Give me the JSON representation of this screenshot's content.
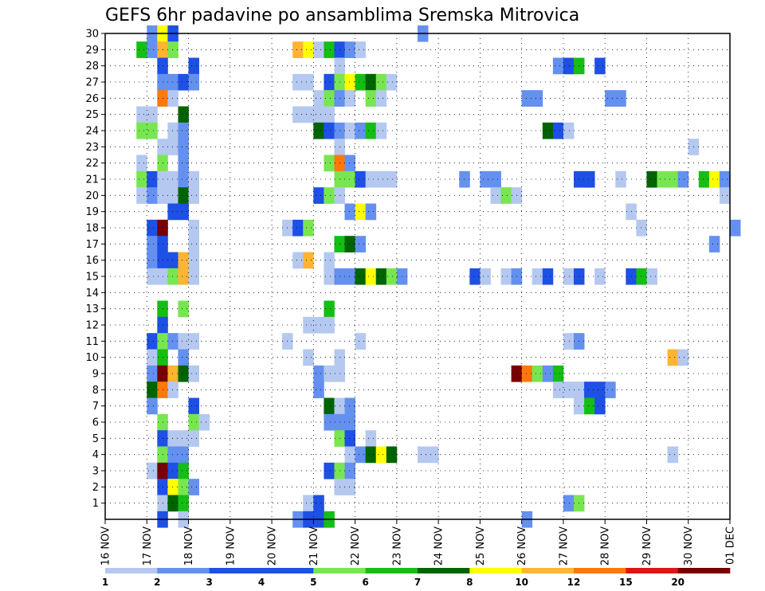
{
  "chart_data": {
    "type": "heatmap",
    "title": "GEFS 6hr padavine po ansamblima Sremska Mitrovica",
    "x_tick_labels": [
      "16 NOV",
      "17 NOV",
      "18 NOV",
      "19 NOV",
      "20 NOV",
      "21 NOV",
      "22 NOV",
      "23 NOV",
      "24 NOV",
      "25 NOV",
      "26 NOV",
      "27 NOV",
      "28 NOV",
      "29 NOV",
      "30 NOV",
      "01 DEC"
    ],
    "x_range_days": [
      0,
      15
    ],
    "y_range": [
      0,
      30
    ],
    "y_ticks": [
      1,
      2,
      3,
      4,
      5,
      6,
      7,
      8,
      9,
      10,
      11,
      12,
      13,
      14,
      15,
      16,
      17,
      18,
      19,
      20,
      21,
      22,
      23,
      24,
      25,
      26,
      27,
      28,
      29,
      30
    ],
    "grid": true,
    "legend_placement": "bottom",
    "legend": {
      "labels": [
        "1",
        "2",
        "3",
        "4",
        "5",
        "6",
        "7",
        "8",
        "10",
        "12",
        "15",
        "20"
      ],
      "colors": [
        "#b4c8f0",
        "#6490f0",
        "#1e50e6",
        "#1e50e6",
        "#78e650",
        "#14be14",
        "#006400",
        "#ffff00",
        "#ffb432",
        "#ff780a",
        "#e11414",
        "#780000"
      ]
    },
    "class_colors": {
      "1": "#b4c8f0",
      "2": "#6490f0",
      "3": "#1e50e6",
      "4": "#78e650",
      "5": "#14be14",
      "6": "#006400",
      "7": "#ffff00",
      "8": "#ffb432",
      "9": "#ff780a",
      "10": "#e11414",
      "11": "#780000"
    },
    "cells": [
      [
        0,
        30,
        4,
        2
      ],
      [
        0,
        30,
        5,
        7
      ],
      [
        0,
        30,
        6,
        3
      ],
      [
        0,
        30,
        30,
        2
      ],
      [
        0,
        29,
        3,
        5
      ],
      [
        0,
        29,
        4,
        2
      ],
      [
        0,
        29,
        5,
        8
      ],
      [
        0,
        29,
        6,
        4
      ],
      [
        0,
        29,
        18,
        8
      ],
      [
        0,
        29,
        19,
        7
      ],
      [
        0,
        29,
        20,
        1
      ],
      [
        0,
        29,
        21,
        5
      ],
      [
        0,
        29,
        22,
        3
      ],
      [
        0,
        29,
        23,
        2
      ],
      [
        0,
        29,
        24,
        1
      ],
      [
        0,
        28,
        5,
        3
      ],
      [
        0,
        28,
        8,
        3
      ],
      [
        0,
        28,
        22,
        1
      ],
      [
        0,
        28,
        43,
        2
      ],
      [
        0,
        28,
        44,
        3
      ],
      [
        0,
        28,
        45,
        5
      ],
      [
        0,
        28,
        47,
        3
      ],
      [
        0,
        27,
        5,
        2
      ],
      [
        0,
        27,
        6,
        2
      ],
      [
        0,
        27,
        7,
        3
      ],
      [
        0,
        27,
        8,
        2
      ],
      [
        0,
        27,
        18,
        1
      ],
      [
        0,
        27,
        19,
        1
      ],
      [
        0,
        27,
        21,
        3
      ],
      [
        0,
        27,
        22,
        4
      ],
      [
        0,
        27,
        23,
        7
      ],
      [
        0,
        27,
        24,
        5
      ],
      [
        0,
        27,
        25,
        6
      ],
      [
        0,
        27,
        26,
        4
      ],
      [
        0,
        27,
        27,
        1
      ],
      [
        0,
        26,
        5,
        9
      ],
      [
        0,
        26,
        6,
        1
      ],
      [
        0,
        26,
        20,
        1
      ],
      [
        0,
        26,
        21,
        4
      ],
      [
        0,
        26,
        22,
        2
      ],
      [
        0,
        26,
        23,
        1
      ],
      [
        0,
        26,
        25,
        4
      ],
      [
        0,
        26,
        26,
        1
      ],
      [
        0,
        26,
        40,
        2
      ],
      [
        0,
        26,
        41,
        2
      ],
      [
        0,
        26,
        48,
        2
      ],
      [
        0,
        26,
        49,
        2
      ],
      [
        0,
        25,
        3,
        1
      ],
      [
        0,
        25,
        4,
        1
      ],
      [
        0,
        25,
        7,
        6
      ],
      [
        0,
        25,
        18,
        1
      ],
      [
        0,
        25,
        19,
        1
      ],
      [
        0,
        25,
        20,
        1
      ],
      [
        0,
        25,
        21,
        1
      ],
      [
        0,
        24,
        3,
        4
      ],
      [
        0,
        24,
        4,
        4
      ],
      [
        0,
        24,
        6,
        1
      ],
      [
        0,
        24,
        7,
        2
      ],
      [
        0,
        24,
        20,
        6
      ],
      [
        0,
        24,
        21,
        3
      ],
      [
        0,
        24,
        22,
        2
      ],
      [
        0,
        24,
        23,
        1
      ],
      [
        0,
        24,
        24,
        2
      ],
      [
        0,
        24,
        25,
        5
      ],
      [
        0,
        24,
        26,
        1
      ],
      [
        0,
        24,
        42,
        6
      ],
      [
        0,
        24,
        43,
        3
      ],
      [
        0,
        24,
        44,
        1
      ],
      [
        0,
        23,
        5,
        1
      ],
      [
        0,
        23,
        6,
        1
      ],
      [
        0,
        23,
        7,
        2
      ],
      [
        0,
        23,
        22,
        1
      ],
      [
        0,
        23,
        56,
        1
      ],
      [
        0,
        22,
        3,
        1
      ],
      [
        0,
        22,
        5,
        4
      ],
      [
        0,
        22,
        7,
        2
      ],
      [
        0,
        22,
        21,
        4
      ],
      [
        0,
        22,
        22,
        9
      ],
      [
        0,
        22,
        23,
        2
      ],
      [
        0,
        21,
        3,
        4
      ],
      [
        0,
        21,
        4,
        3
      ],
      [
        0,
        21,
        5,
        1
      ],
      [
        0,
        21,
        6,
        1
      ],
      [
        0,
        21,
        7,
        2
      ],
      [
        0,
        21,
        8,
        1
      ],
      [
        0,
        21,
        22,
        4
      ],
      [
        0,
        21,
        23,
        4
      ],
      [
        0,
        21,
        24,
        3
      ],
      [
        0,
        21,
        25,
        1
      ],
      [
        0,
        21,
        26,
        1
      ],
      [
        0,
        21,
        27,
        1
      ],
      [
        0,
        21,
        34,
        2
      ],
      [
        0,
        21,
        36,
        2
      ],
      [
        0,
        21,
        37,
        2
      ],
      [
        0,
        21,
        45,
        3
      ],
      [
        0,
        21,
        46,
        3
      ],
      [
        0,
        21,
        49,
        1
      ],
      [
        0,
        21,
        52,
        6
      ],
      [
        0,
        21,
        53,
        4
      ],
      [
        0,
        21,
        54,
        4
      ],
      [
        0,
        21,
        55,
        2
      ],
      [
        0,
        21,
        57,
        5
      ],
      [
        0,
        21,
        58,
        7
      ],
      [
        0,
        21,
        59,
        2
      ],
      [
        0,
        20,
        3,
        1
      ],
      [
        0,
        20,
        4,
        2
      ],
      [
        0,
        20,
        5,
        1
      ],
      [
        0,
        20,
        6,
        1
      ],
      [
        0,
        20,
        7,
        6
      ],
      [
        0,
        20,
        8,
        1
      ],
      [
        0,
        20,
        20,
        3
      ],
      [
        0,
        20,
        21,
        4
      ],
      [
        0,
        20,
        22,
        1
      ],
      [
        0,
        20,
        37,
        1
      ],
      [
        0,
        20,
        38,
        4
      ],
      [
        0,
        20,
        39,
        1
      ],
      [
        0,
        20,
        59,
        1
      ],
      [
        0,
        19,
        6,
        3
      ],
      [
        0,
        19,
        7,
        3
      ],
      [
        0,
        19,
        23,
        2
      ],
      [
        0,
        19,
        24,
        7
      ],
      [
        0,
        19,
        25,
        2
      ],
      [
        0,
        19,
        50,
        1
      ],
      [
        0,
        18,
        4,
        3
      ],
      [
        0,
        18,
        5,
        11
      ],
      [
        0,
        18,
        8,
        1
      ],
      [
        0,
        18,
        17,
        1
      ],
      [
        0,
        18,
        18,
        3
      ],
      [
        0,
        18,
        19,
        4
      ],
      [
        0,
        18,
        51,
        1
      ],
      [
        0,
        18,
        60,
        2
      ],
      [
        0,
        17,
        4,
        2
      ],
      [
        0,
        17,
        5,
        3
      ],
      [
        0,
        17,
        8,
        1
      ],
      [
        0,
        17,
        22,
        5
      ],
      [
        0,
        17,
        23,
        6
      ],
      [
        0,
        17,
        24,
        2
      ],
      [
        0,
        17,
        58,
        2
      ],
      [
        0,
        16,
        4,
        2
      ],
      [
        0,
        16,
        5,
        3
      ],
      [
        0,
        16,
        6,
        3
      ],
      [
        0,
        16,
        7,
        8
      ],
      [
        0,
        16,
        8,
        1
      ],
      [
        0,
        16,
        18,
        1
      ],
      [
        0,
        16,
        19,
        8
      ],
      [
        0,
        16,
        21,
        1
      ],
      [
        0,
        15,
        4,
        1
      ],
      [
        0,
        15,
        5,
        1
      ],
      [
        0,
        15,
        6,
        4
      ],
      [
        0,
        15,
        7,
        8
      ],
      [
        0,
        15,
        8,
        1
      ],
      [
        0,
        15,
        21,
        1
      ],
      [
        0,
        15,
        22,
        2
      ],
      [
        0,
        15,
        23,
        2
      ],
      [
        0,
        15,
        24,
        6
      ],
      [
        0,
        15,
        25,
        7
      ],
      [
        0,
        15,
        26,
        6
      ],
      [
        0,
        15,
        27,
        4
      ],
      [
        0,
        15,
        28,
        2
      ],
      [
        0,
        15,
        35,
        3
      ],
      [
        0,
        15,
        36,
        1
      ],
      [
        0,
        15,
        38,
        1
      ],
      [
        0,
        15,
        39,
        2
      ],
      [
        0,
        15,
        41,
        1
      ],
      [
        0,
        15,
        42,
        3
      ],
      [
        0,
        15,
        44,
        1
      ],
      [
        0,
        15,
        45,
        3
      ],
      [
        0,
        15,
        47,
        1
      ],
      [
        0,
        15,
        50,
        3
      ],
      [
        0,
        15,
        51,
        5
      ],
      [
        0,
        15,
        52,
        1
      ],
      [
        0,
        13,
        5,
        5
      ],
      [
        0,
        13,
        7,
        4
      ],
      [
        0,
        13,
        21,
        5
      ],
      [
        0,
        12,
        5,
        3
      ],
      [
        0,
        12,
        19,
        1
      ],
      [
        0,
        12,
        20,
        1
      ],
      [
        0,
        12,
        21,
        1
      ],
      [
        0,
        11,
        4,
        3
      ],
      [
        0,
        11,
        5,
        4
      ],
      [
        0,
        11,
        6,
        2
      ],
      [
        0,
        11,
        7,
        1
      ],
      [
        0,
        11,
        8,
        1
      ],
      [
        0,
        11,
        17,
        1
      ],
      [
        0,
        11,
        24,
        1
      ],
      [
        0,
        11,
        44,
        1
      ],
      [
        0,
        11,
        45,
        2
      ],
      [
        0,
        10,
        4,
        1
      ],
      [
        0,
        10,
        5,
        5
      ],
      [
        0,
        10,
        7,
        2
      ],
      [
        0,
        10,
        19,
        1
      ],
      [
        0,
        10,
        22,
        1
      ],
      [
        0,
        10,
        54,
        8
      ],
      [
        0,
        10,
        55,
        1
      ],
      [
        0,
        9,
        4,
        2
      ],
      [
        0,
        9,
        5,
        11
      ],
      [
        0,
        9,
        6,
        8
      ],
      [
        0,
        9,
        7,
        6
      ],
      [
        0,
        9,
        8,
        1
      ],
      [
        0,
        9,
        20,
        2
      ],
      [
        0,
        9,
        21,
        1
      ],
      [
        0,
        9,
        22,
        1
      ],
      [
        0,
        9,
        39,
        11
      ],
      [
        0,
        9,
        40,
        9
      ],
      [
        0,
        9,
        41,
        4
      ],
      [
        0,
        9,
        42,
        2
      ],
      [
        0,
        9,
        43,
        5
      ],
      [
        0,
        8,
        4,
        6
      ],
      [
        0,
        8,
        5,
        9
      ],
      [
        0,
        8,
        6,
        1
      ],
      [
        0,
        8,
        20,
        2
      ],
      [
        0,
        8,
        43,
        1
      ],
      [
        0,
        8,
        44,
        1
      ],
      [
        0,
        8,
        45,
        1
      ],
      [
        0,
        8,
        46,
        3
      ],
      [
        0,
        8,
        47,
        3
      ],
      [
        0,
        8,
        48,
        2
      ],
      [
        0,
        7,
        4,
        2
      ],
      [
        0,
        7,
        8,
        3
      ],
      [
        0,
        7,
        21,
        6
      ],
      [
        0,
        7,
        22,
        1
      ],
      [
        0,
        7,
        23,
        2
      ],
      [
        0,
        7,
        45,
        1
      ],
      [
        0,
        7,
        46,
        5
      ],
      [
        0,
        7,
        47,
        3
      ],
      [
        0,
        6,
        5,
        4
      ],
      [
        0,
        6,
        8,
        4
      ],
      [
        0,
        6,
        9,
        1
      ],
      [
        0,
        6,
        21,
        2
      ],
      [
        0,
        6,
        22,
        2
      ],
      [
        0,
        6,
        23,
        2
      ],
      [
        0,
        5,
        5,
        3
      ],
      [
        0,
        5,
        6,
        1
      ],
      [
        0,
        5,
        7,
        1
      ],
      [
        0,
        5,
        8,
        1
      ],
      [
        0,
        5,
        22,
        4
      ],
      [
        0,
        5,
        23,
        3
      ],
      [
        0,
        5,
        25,
        1
      ],
      [
        0,
        4,
        5,
        4
      ],
      [
        0,
        4,
        6,
        2
      ],
      [
        0,
        4,
        7,
        2
      ],
      [
        0,
        4,
        23,
        1
      ],
      [
        0,
        4,
        24,
        2
      ],
      [
        0,
        4,
        25,
        6
      ],
      [
        0,
        4,
        26,
        7
      ],
      [
        0,
        4,
        27,
        6
      ],
      [
        0,
        4,
        30,
        1
      ],
      [
        0,
        4,
        31,
        1
      ],
      [
        0,
        4,
        54,
        1
      ],
      [
        0,
        3,
        4,
        1
      ],
      [
        0,
        3,
        5,
        11
      ],
      [
        0,
        3,
        6,
        3
      ],
      [
        0,
        3,
        7,
        5
      ],
      [
        0,
        3,
        21,
        3
      ],
      [
        0,
        3,
        22,
        4
      ],
      [
        0,
        3,
        23,
        2
      ],
      [
        0,
        2,
        5,
        3
      ],
      [
        0,
        2,
        6,
        7
      ],
      [
        0,
        2,
        7,
        4
      ],
      [
        0,
        2,
        8,
        2
      ],
      [
        0,
        2,
        22,
        1
      ],
      [
        0,
        2,
        23,
        1
      ],
      [
        0,
        1,
        5,
        1
      ],
      [
        0,
        1,
        6,
        6
      ],
      [
        0,
        1,
        7,
        5
      ],
      [
        0,
        1,
        19,
        1
      ],
      [
        0,
        1,
        20,
        3
      ],
      [
        0,
        1,
        44,
        2
      ],
      [
        0,
        1,
        45,
        4
      ],
      [
        0,
        0,
        5,
        3
      ],
      [
        0,
        0,
        7,
        1
      ],
      [
        0,
        0,
        18,
        2
      ],
      [
        0,
        0,
        19,
        3
      ],
      [
        0,
        0,
        20,
        3
      ],
      [
        0,
        0,
        21,
        5
      ],
      [
        0,
        0,
        40,
        2
      ]
    ]
  }
}
